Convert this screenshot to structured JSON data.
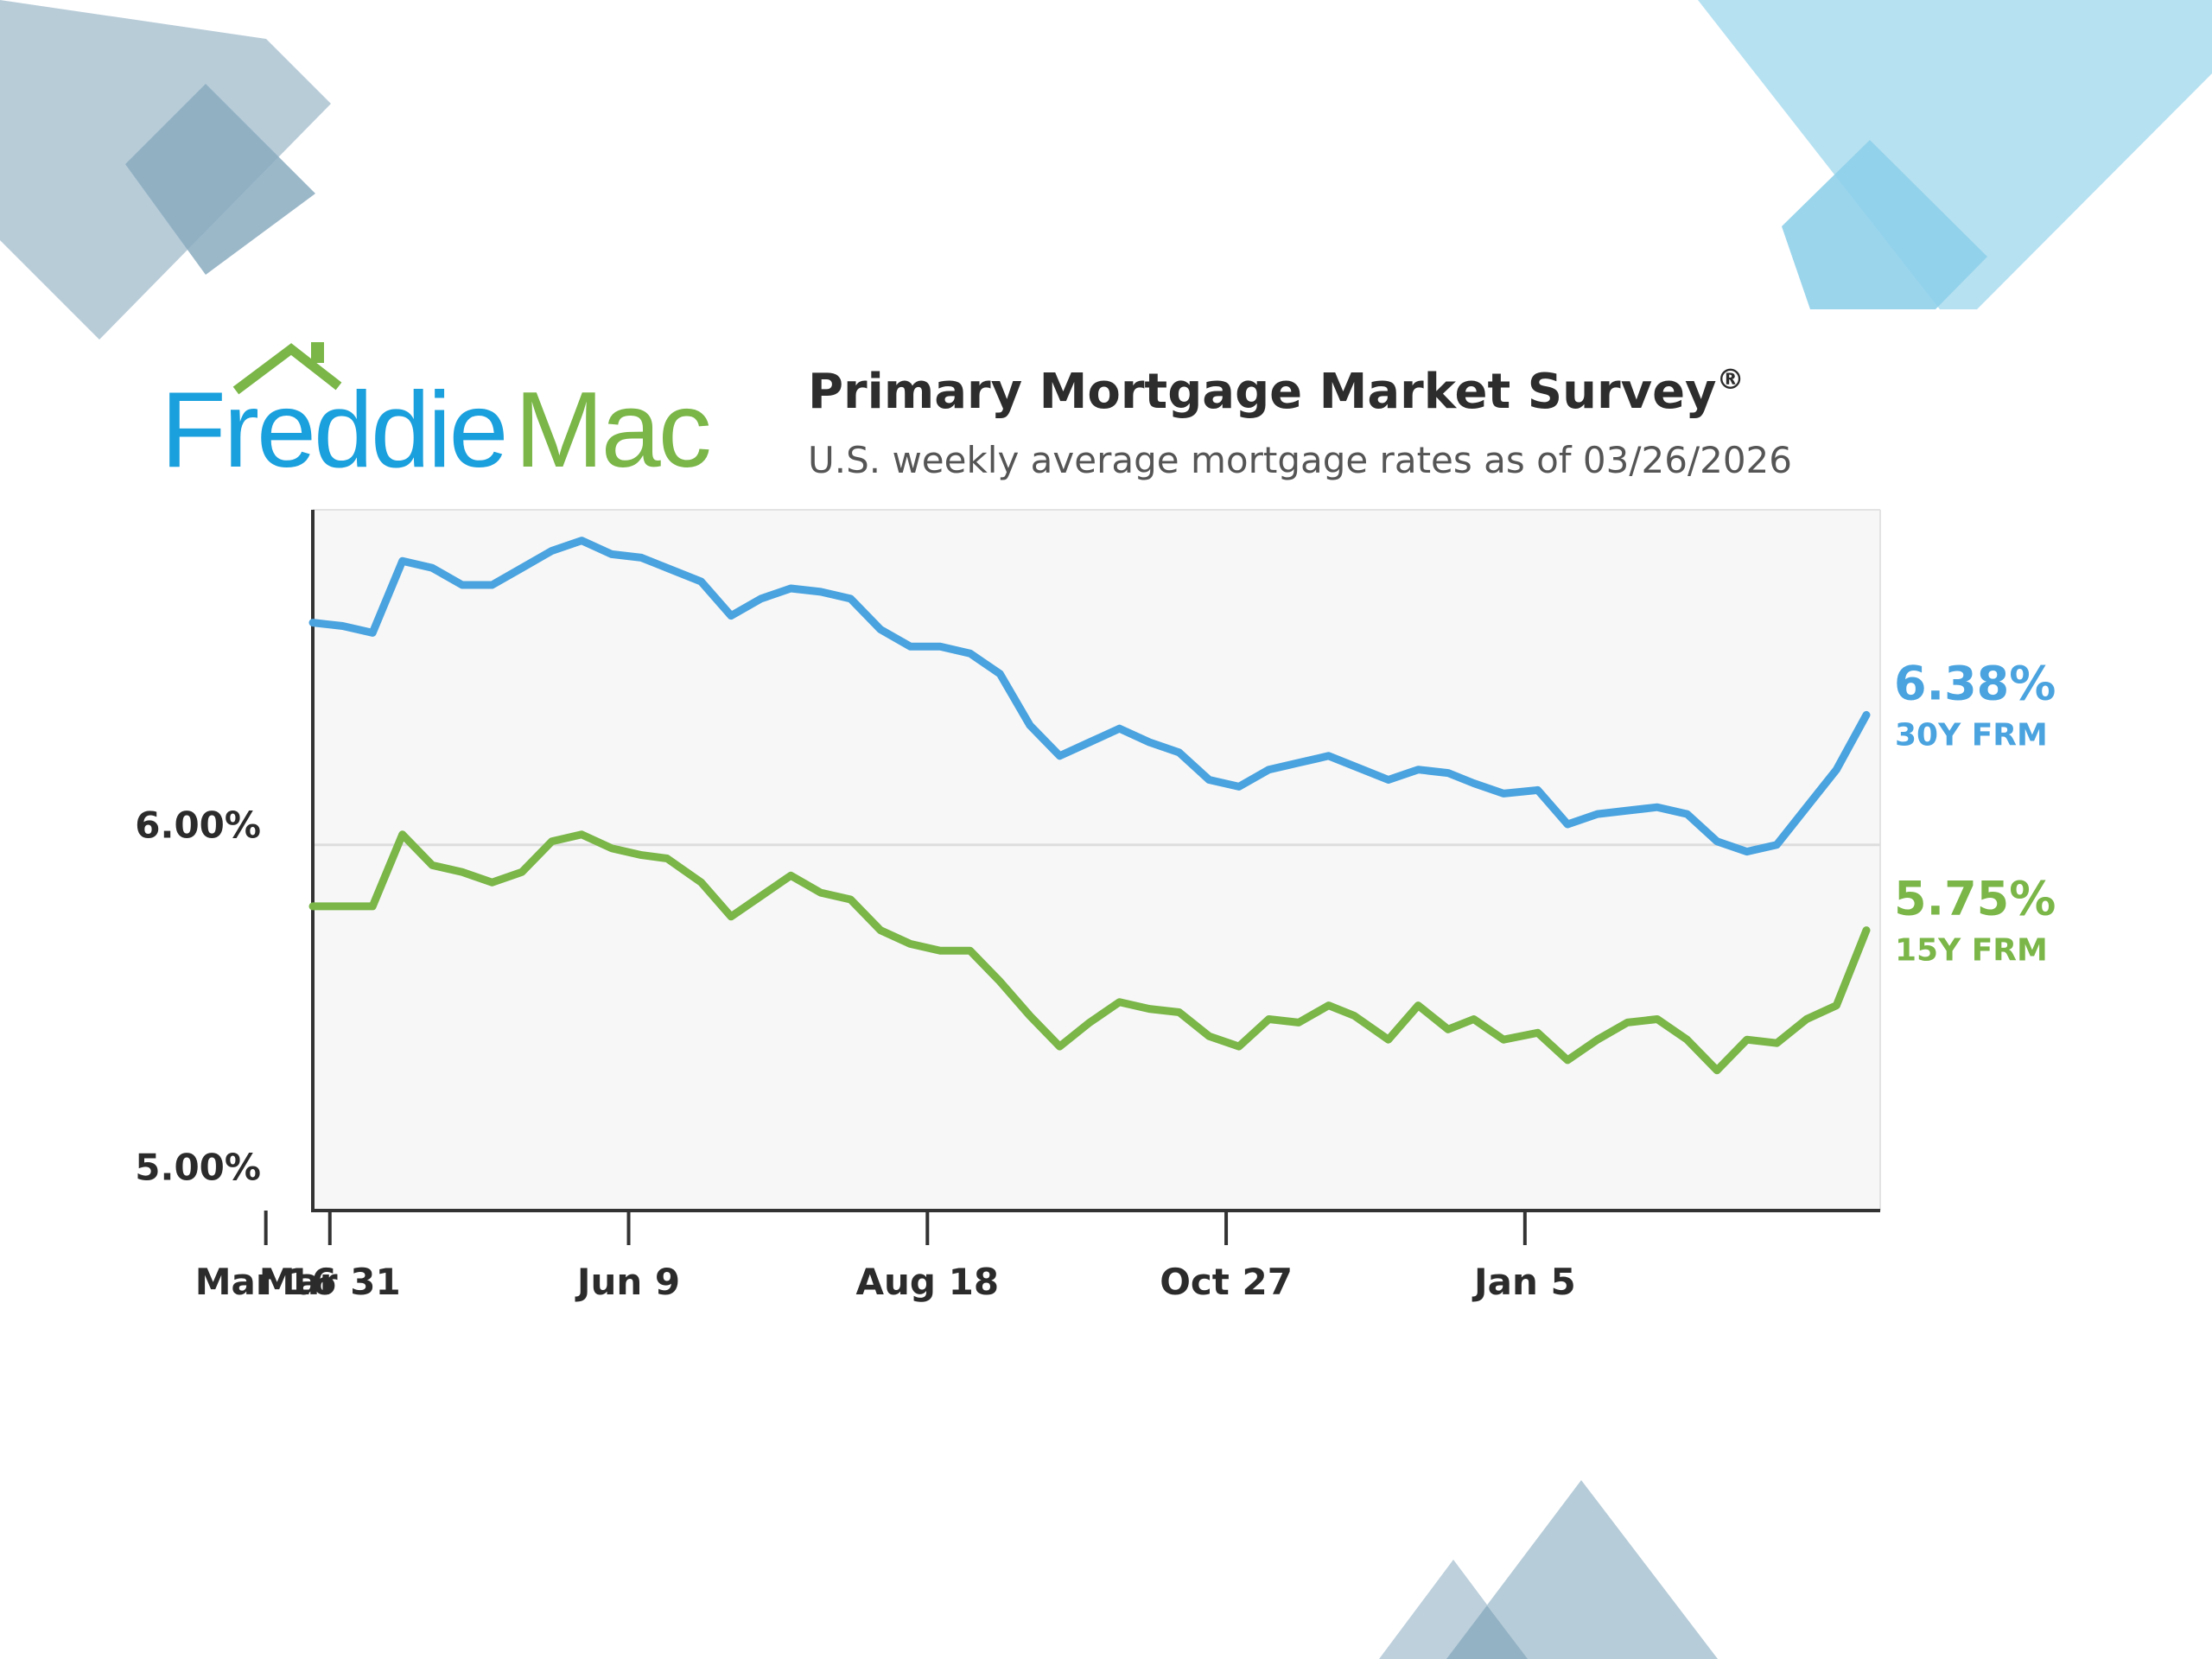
{
  "brand": {
    "name_part1": "Freddie",
    "name_part2": "Mac",
    "blue": "#1aa0dd",
    "green": "#7ab648"
  },
  "chart_data": {
    "type": "line",
    "title": "Primary Mortgage Market Survey",
    "title_mark": "®",
    "subtitle": "U.S. weekly average mortgage rates as of 03/26/2026",
    "x_ticks": [
      "Mar 31",
      "Jun 9",
      "Aug 18",
      "Oct 27",
      "Jan 5",
      "Mar 16"
    ],
    "y_ticks": [
      "6.00%",
      "5.00%"
    ],
    "ylim": [
      4.93,
      6.98
    ],
    "xlabel": "",
    "ylabel": "",
    "grid": "horizontal line at 6.00%",
    "background": "#f7f7f7",
    "legend": "end labels at right",
    "x": [
      "2025-03-27",
      "2025-04-03",
      "2025-04-10",
      "2025-04-17",
      "2025-04-24",
      "2025-05-01",
      "2025-05-08",
      "2025-05-15",
      "2025-05-22",
      "2025-05-29",
      "2025-06-05",
      "2025-06-12",
      "2025-06-18",
      "2025-06-26",
      "2025-07-03",
      "2025-07-10",
      "2025-07-17",
      "2025-07-24",
      "2025-07-31",
      "2025-08-07",
      "2025-08-14",
      "2025-08-21",
      "2025-08-28",
      "2025-09-04",
      "2025-09-11",
      "2025-09-18",
      "2025-09-25",
      "2025-10-02",
      "2025-10-09",
      "2025-10-16",
      "2025-10-23",
      "2025-10-30",
      "2025-11-06",
      "2025-11-13",
      "2025-11-20",
      "2025-11-26",
      "2025-12-04",
      "2025-12-11",
      "2025-12-18",
      "2025-12-24",
      "2025-12-31",
      "2026-01-08",
      "2026-01-15",
      "2026-01-22",
      "2026-01-29",
      "2026-02-05",
      "2026-02-12",
      "2026-02-19",
      "2026-02-26",
      "2026-03-05",
      "2026-03-12",
      "2026-03-19",
      "2026-03-26"
    ],
    "series": [
      {
        "name": "30Y FRM",
        "color": "#4aa3df",
        "end_label_value": "6.38%",
        "values": [
          6.65,
          6.64,
          6.62,
          6.83,
          6.81,
          6.76,
          6.76,
          6.81,
          6.86,
          6.89,
          6.85,
          6.84,
          6.81,
          6.77,
          6.67,
          6.72,
          6.75,
          6.74,
          6.72,
          6.63,
          6.58,
          6.58,
          6.56,
          6.5,
          6.35,
          6.26,
          6.3,
          6.34,
          6.3,
          6.27,
          6.19,
          6.17,
          6.22,
          6.24,
          6.26,
          6.23,
          6.19,
          6.22,
          6.21,
          6.18,
          6.15,
          6.16,
          6.06,
          6.09,
          6.1,
          6.11,
          6.09,
          6.01,
          5.98,
          6.0,
          6.11,
          6.22,
          6.38
        ]
      },
      {
        "name": "15Y FRM",
        "color": "#7ab648",
        "end_label_value": "5.75%",
        "values": [
          5.82,
          5.82,
          5.82,
          6.03,
          5.94,
          5.92,
          5.89,
          5.92,
          6.01,
          6.03,
          5.99,
          5.97,
          5.96,
          5.89,
          5.79,
          5.85,
          5.91,
          5.86,
          5.84,
          5.75,
          5.71,
          5.69,
          5.69,
          5.6,
          5.5,
          5.41,
          5.48,
          5.54,
          5.52,
          5.51,
          5.44,
          5.41,
          5.49,
          5.48,
          5.53,
          5.5,
          5.43,
          5.53,
          5.46,
          5.49,
          5.43,
          5.45,
          5.37,
          5.43,
          5.48,
          5.49,
          5.43,
          5.34,
          5.43,
          5.42,
          5.49,
          5.53,
          5.75
        ]
      }
    ]
  }
}
